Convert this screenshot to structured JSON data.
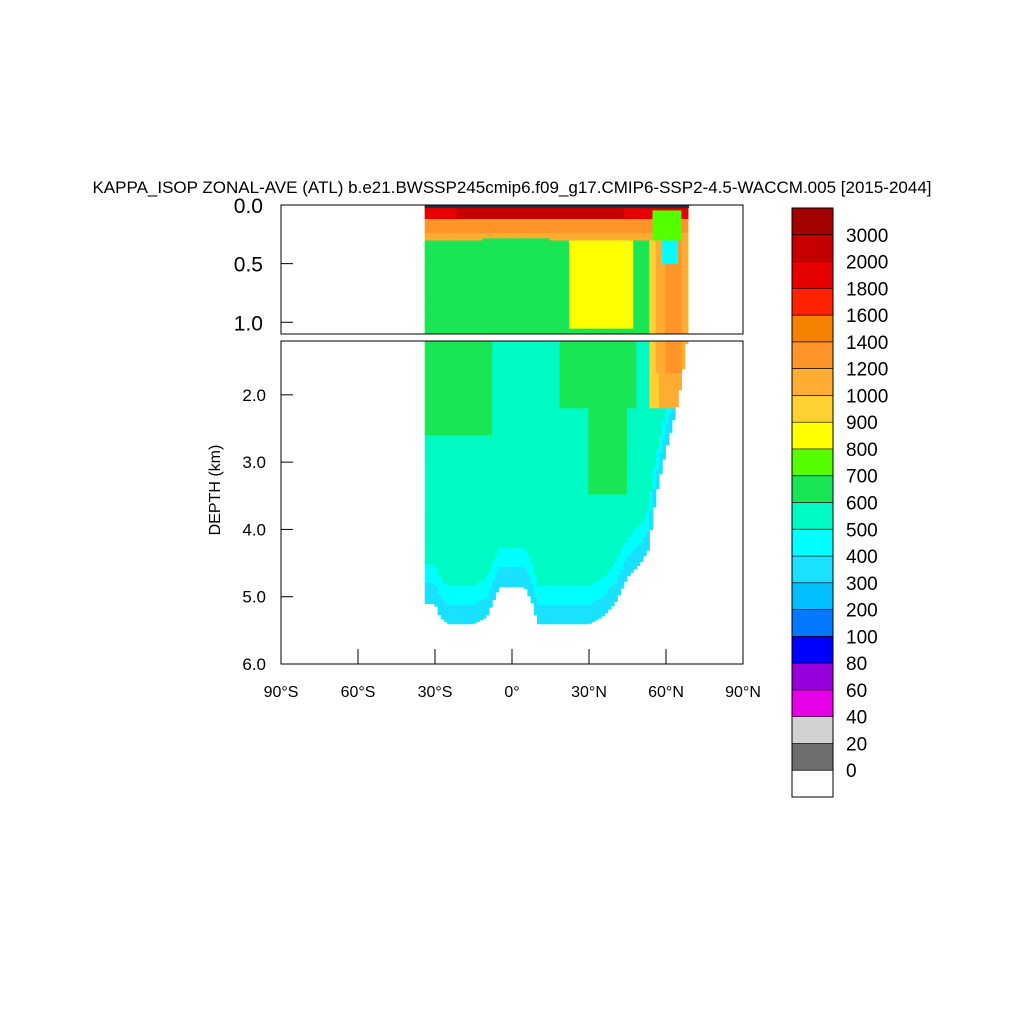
{
  "chart_data": {
    "type": "heatmap",
    "title": "KAPPA_ISOP ZONAL-AVE (ATL) b.e21.BWSSP245cmip6.f09_g17.CMIP6-SSP2-4.5-WACCM.005 [2015-2044]",
    "ylabel": "DEPTH (km)",
    "xlabel": "",
    "x_ticks": [
      "90°S",
      "60°S",
      "30°S",
      "0°",
      "30°N",
      "60°N",
      "90°N"
    ],
    "x_values": [
      -90,
      -60,
      -30,
      0,
      30,
      60,
      90
    ],
    "xlim": [
      -90,
      90
    ],
    "upper_panel": {
      "ylim": [
        0,
        1.1
      ],
      "y_ticks": [
        "0.0",
        "0.5",
        "1.0"
      ],
      "y_values": [
        0.0,
        0.5,
        1.0
      ]
    },
    "lower_panel": {
      "ylim": [
        1.2,
        6.0
      ],
      "y_ticks": [
        "2.0",
        "3.0",
        "4.0",
        "5.0",
        "6.0"
      ],
      "y_values": [
        2.0,
        3.0,
        4.0,
        5.0,
        6.0
      ]
    },
    "colorbar": {
      "labels": [
        "3000",
        "2000",
        "1800",
        "1600",
        "1400",
        "1200",
        "1000",
        "900",
        "800",
        "700",
        "600",
        "500",
        "400",
        "300",
        "200",
        "100",
        "80",
        "60",
        "40",
        "20",
        "0"
      ],
      "colors": [
        "#a30000",
        "#c60000",
        "#e60000",
        "#ff2200",
        "#f58200",
        "#ff9428",
        "#ffac32",
        "#ffd232",
        "#ffff00",
        "#55ff00",
        "#19e655",
        "#00fac3",
        "#00ffff",
        "#19e1ff",
        "#00beff",
        "#0078ff",
        "#0000ff",
        "#9600dc",
        "#e600e6",
        "#d2d2d2",
        "#6e6e6e",
        "#ffffff"
      ]
    },
    "regions_description": "Atlantic zonal-average field; data present from about 34°S to 69°N",
    "field": {
      "lat_range": [
        -34,
        69
      ],
      "bottom_depth_profile": [
        [
          -34,
          5.1
        ],
        [
          -30,
          5.1
        ],
        [
          -28,
          5.3
        ],
        [
          -25,
          5.4
        ],
        [
          -20,
          5.4
        ],
        [
          -15,
          5.4
        ],
        [
          -10,
          5.3
        ],
        [
          -5,
          4.85
        ],
        [
          0,
          4.85
        ],
        [
          5,
          4.85
        ],
        [
          8,
          5.1
        ],
        [
          10,
          5.4
        ],
        [
          20,
          5.4
        ],
        [
          30,
          5.4
        ],
        [
          35,
          5.3
        ],
        [
          40,
          5.1
        ],
        [
          45,
          4.7
        ],
        [
          50,
          4.5
        ],
        [
          53,
          4.3
        ],
        [
          56,
          3.5
        ],
        [
          60,
          2.8
        ],
        [
          64,
          2.2
        ],
        [
          66,
          1.8
        ],
        [
          68,
          1.2
        ],
        [
          69,
          0.0
        ]
      ],
      "bands": [
        {
          "value": 300,
          "lat": [
            -34,
            45
          ],
          "depth_top": [
            4.6,
            4.5,
            4.6,
            4.5,
            4.3
          ],
          "comment": "abyssal 300-400 band"
        },
        {
          "value": 500,
          "comment": "deep interior 500-600 band"
        },
        {
          "value": 600,
          "comment": "intermediate green band"
        },
        {
          "value": 800,
          "comment": "yellow subtropical north band 0.2-1.0 km"
        },
        {
          "value": 1200,
          "comment": "orange near surface and high-latitude north"
        },
        {
          "value": 2000,
          "comment": "red surface maxima"
        }
      ]
    }
  }
}
